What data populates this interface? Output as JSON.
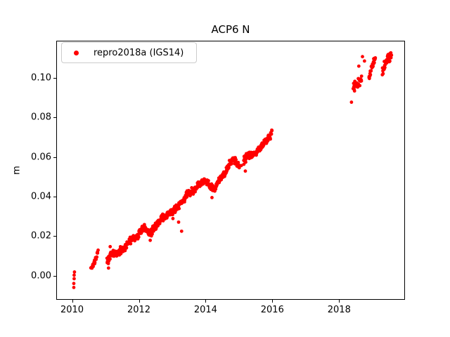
{
  "chart_data": {
    "type": "scatter",
    "title": "ACP6 N",
    "xlabel": "",
    "ylabel": "m",
    "grid": false,
    "xlim": [
      2009.525,
      2019.975
    ],
    "ylim": [
      -0.0122,
      0.1187
    ],
    "xticks": {
      "values": [
        2010,
        2012,
        2014,
        2016,
        2018
      ],
      "labels": [
        "2010",
        "2012",
        "2014",
        "2016",
        "2018"
      ]
    },
    "yticks": {
      "values": [
        0.0,
        0.02,
        0.04,
        0.06,
        0.08,
        0.1
      ],
      "labels": [
        "0.00",
        "0.02",
        "0.04",
        "0.06",
        "0.08",
        "0.10"
      ]
    },
    "legend": {
      "position": "upper left",
      "entries": [
        {
          "label": "repro2018a (IGS14)",
          "color": "#ff0000",
          "marker": "circle"
        }
      ]
    },
    "series": [
      {
        "name": "repro2018a (IGS14)",
        "color": "#ff0000",
        "marker_radius_px": 2.4,
        "seed": 7,
        "segments": [
          {
            "t0": 2010.54,
            "t1": 2010.76,
            "n": 24,
            "noise": 0.0016,
            "knots": [
              [
                2010.54,
                0.0042
              ],
              [
                2010.64,
                0.0068
              ],
              [
                2010.72,
                0.0108
              ],
              [
                2010.76,
                0.012
              ]
            ]
          },
          {
            "t0": 2011.02,
            "t1": 2015.0,
            "n": 560,
            "noise": 0.0022,
            "knots": [
              [
                2011.02,
                0.007
              ],
              [
                2011.1,
                0.009
              ],
              [
                2011.18,
                0.0125
              ],
              [
                2011.3,
                0.0105
              ],
              [
                2011.45,
                0.0135
              ],
              [
                2011.6,
                0.0155
              ],
              [
                2011.75,
                0.0185
              ],
              [
                2011.9,
                0.0195
              ],
              [
                2012.05,
                0.023
              ],
              [
                2012.18,
                0.0245
              ],
              [
                2012.32,
                0.0215
              ],
              [
                2012.45,
                0.0245
              ],
              [
                2012.6,
                0.0285
              ],
              [
                2012.78,
                0.0305
              ],
              [
                2012.95,
                0.032
              ],
              [
                2013.1,
                0.0345
              ],
              [
                2013.28,
                0.038
              ],
              [
                2013.45,
                0.042
              ],
              [
                2013.62,
                0.0435
              ],
              [
                2013.8,
                0.0465
              ],
              [
                2013.95,
                0.049
              ],
              [
                2014.1,
                0.0462
              ],
              [
                2014.25,
                0.0442
              ],
              [
                2014.4,
                0.049
              ],
              [
                2014.55,
                0.052
              ],
              [
                2014.7,
                0.0575
              ],
              [
                2014.82,
                0.0592
              ],
              [
                2014.93,
                0.0568
              ],
              [
                2015.0,
                0.0558
              ]
            ]
          },
          {
            "t0": 2015.12,
            "t1": 2015.97,
            "n": 130,
            "noise": 0.0022,
            "knots": [
              [
                2015.12,
                0.0585
              ],
              [
                2015.3,
                0.0615
              ],
              [
                2015.45,
                0.0622
              ],
              [
                2015.6,
                0.0642
              ],
              [
                2015.76,
                0.0678
              ],
              [
                2015.88,
                0.0702
              ],
              [
                2015.97,
                0.0722
              ]
            ]
          },
          {
            "t0": 2018.4,
            "t1": 2018.66,
            "n": 30,
            "noise": 0.0026,
            "knots": [
              [
                2018.4,
                0.0952
              ],
              [
                2018.5,
                0.0972
              ],
              [
                2018.58,
                0.0985
              ],
              [
                2018.66,
                0.0998
              ]
            ]
          },
          {
            "t0": 2018.87,
            "t1": 2019.07,
            "n": 26,
            "noise": 0.0028,
            "knots": [
              [
                2018.87,
                0.1012
              ],
              [
                2018.95,
                0.1055
              ],
              [
                2019.0,
                0.1082
              ],
              [
                2019.07,
                0.1102
              ]
            ]
          },
          {
            "t0": 2019.27,
            "t1": 2019.55,
            "n": 36,
            "noise": 0.0028,
            "knots": [
              [
                2019.27,
                0.1038
              ],
              [
                2019.35,
                0.1075
              ],
              [
                2019.45,
                0.1102
              ],
              [
                2019.55,
                0.1122
              ]
            ]
          }
        ],
        "points": [
          [
            2010.03,
            -0.0056
          ],
          [
            2010.03,
            -0.0036
          ],
          [
            2010.04,
            -0.0012
          ],
          [
            2010.04,
            0.0006
          ],
          [
            2010.05,
            0.0022
          ],
          [
            2011.07,
            0.0042
          ],
          [
            2011.12,
            0.015
          ],
          [
            2012.32,
            0.0182
          ],
          [
            2013.0,
            0.0292
          ],
          [
            2013.17,
            0.0274
          ],
          [
            2013.26,
            0.0228
          ],
          [
            2014.17,
            0.0398
          ],
          [
            2015.05,
            0.056
          ],
          [
            2015.17,
            0.0532
          ],
          [
            2018.35,
            0.088
          ],
          [
            2018.57,
            0.1062
          ],
          [
            2018.68,
            0.111
          ],
          [
            2018.74,
            0.1088
          ]
        ]
      }
    ]
  }
}
